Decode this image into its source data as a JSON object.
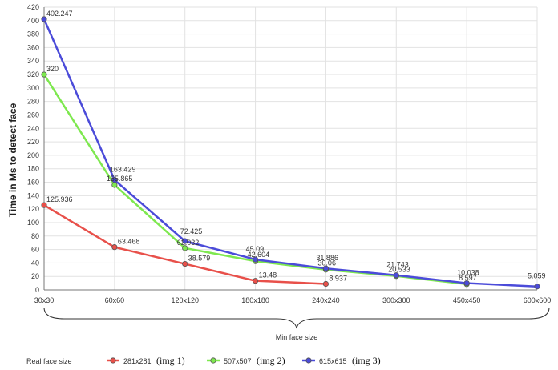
{
  "chart_data": {
    "type": "line",
    "ylabel": "Time in Ms to detect face",
    "xlabel": "Min face size",
    "categories": [
      "30x30",
      "60x60",
      "120x120",
      "180x180",
      "240x240",
      "300x300",
      "450x450",
      "600x600"
    ],
    "ylim": [
      0,
      420
    ],
    "ystep": 20,
    "grid": true,
    "legend_placement": "bottom",
    "legend_title": "Real face size",
    "series": [
      {
        "name": "281x281",
        "note": "(img 1)",
        "color": "#e8504a",
        "marker_fill": "#e8504a",
        "values": [
          125.936,
          63.468,
          38.579,
          13.48,
          8.937,
          null,
          null,
          null
        ],
        "labels": [
          "125.936",
          "63.468",
          "38.579",
          "13.48",
          "8.937",
          "",
          "",
          ""
        ]
      },
      {
        "name": "507x507",
        "note": "(img 2)",
        "color": "#7ee84f",
        "marker_fill": "#7ee84f",
        "values": [
          320,
          155.865,
          62.032,
          42.604,
          30.06,
          20.533,
          8.597,
          null
        ],
        "labels": [
          "320",
          "155.865",
          "62.032",
          "42.604",
          "30.06",
          "20.533",
          "8.597",
          ""
        ]
      },
      {
        "name": "615x615",
        "note": "(img 3)",
        "color": "#4b4bd9",
        "marker_fill": "#4b4bd9",
        "values": [
          402.247,
          163.429,
          72.425,
          45.09,
          31.886,
          21.743,
          10.038,
          5.059
        ],
        "labels": [
          "402.247",
          "163.429",
          "72.425",
          "45.09",
          "31.886",
          "21.743",
          "10.038",
          "5.059"
        ]
      }
    ]
  }
}
